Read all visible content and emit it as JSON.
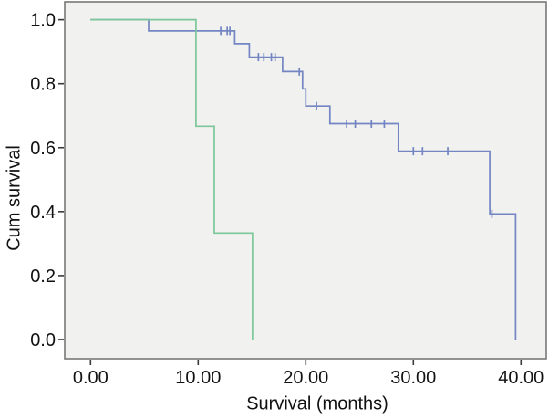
{
  "chart_data": {
    "type": "line",
    "subtype": "kaplan_meier_step",
    "title": "",
    "xlabel": "Survival (months)",
    "ylabel": "Cum survival",
    "xlim": [
      0,
      40
    ],
    "ylim": [
      0.0,
      1.0
    ],
    "x_range": [
      -2.4,
      42.35
    ],
    "y_range": [
      -0.06,
      1.056
    ],
    "grid": false,
    "legend": "none",
    "plot_bg_color": "#f1f1ef",
    "frame_color": "#787878",
    "tick_color": "#3a3a3a",
    "text_color": "#111111",
    "x_ticks": [
      {
        "value": 0,
        "label": "0.00"
      },
      {
        "value": 10,
        "label": "10.00"
      },
      {
        "value": 20,
        "label": "20.00"
      },
      {
        "value": 30,
        "label": "30.00"
      },
      {
        "value": 40,
        "label": "40.00"
      }
    ],
    "y_ticks": [
      {
        "value": 0.0,
        "label": "0.0"
      },
      {
        "value": 0.2,
        "label": "0.2"
      },
      {
        "value": 0.4,
        "label": "0.4"
      },
      {
        "value": 0.6,
        "label": "0.6"
      },
      {
        "value": 0.8,
        "label": "0.8"
      },
      {
        "value": 1.0,
        "label": "1.0"
      }
    ],
    "series": [
      {
        "name": "series-blue",
        "color": "#7385c2",
        "steps": [
          [
            0,
            1.0
          ],
          [
            5.4,
            0.965
          ],
          [
            13.4,
            0.925
          ],
          [
            14.75,
            0.883
          ],
          [
            17.85,
            0.838
          ],
          [
            19.7,
            0.784
          ],
          [
            20.0,
            0.73
          ],
          [
            22.25,
            0.675
          ],
          [
            28.6,
            0.589
          ],
          [
            37.1,
            0.393
          ],
          [
            39.5,
            0.0
          ]
        ],
        "censors": [
          [
            12.1,
            0.965
          ],
          [
            12.7,
            0.965
          ],
          [
            12.95,
            0.965
          ],
          [
            15.6,
            0.883
          ],
          [
            16.1,
            0.883
          ],
          [
            16.8,
            0.883
          ],
          [
            17.15,
            0.883
          ],
          [
            19.4,
            0.838
          ],
          [
            21.0,
            0.73
          ],
          [
            23.8,
            0.675
          ],
          [
            24.6,
            0.675
          ],
          [
            26.1,
            0.675
          ],
          [
            27.3,
            0.675
          ],
          [
            30.0,
            0.589
          ],
          [
            30.85,
            0.589
          ],
          [
            33.2,
            0.589
          ],
          [
            37.3,
            0.393
          ]
        ]
      },
      {
        "name": "series-green",
        "color": "#7cc79a",
        "steps": [
          [
            0,
            1.0
          ],
          [
            9.8,
            0.667
          ],
          [
            11.5,
            0.333
          ],
          [
            15.05,
            0.0
          ]
        ],
        "censors": []
      }
    ]
  }
}
